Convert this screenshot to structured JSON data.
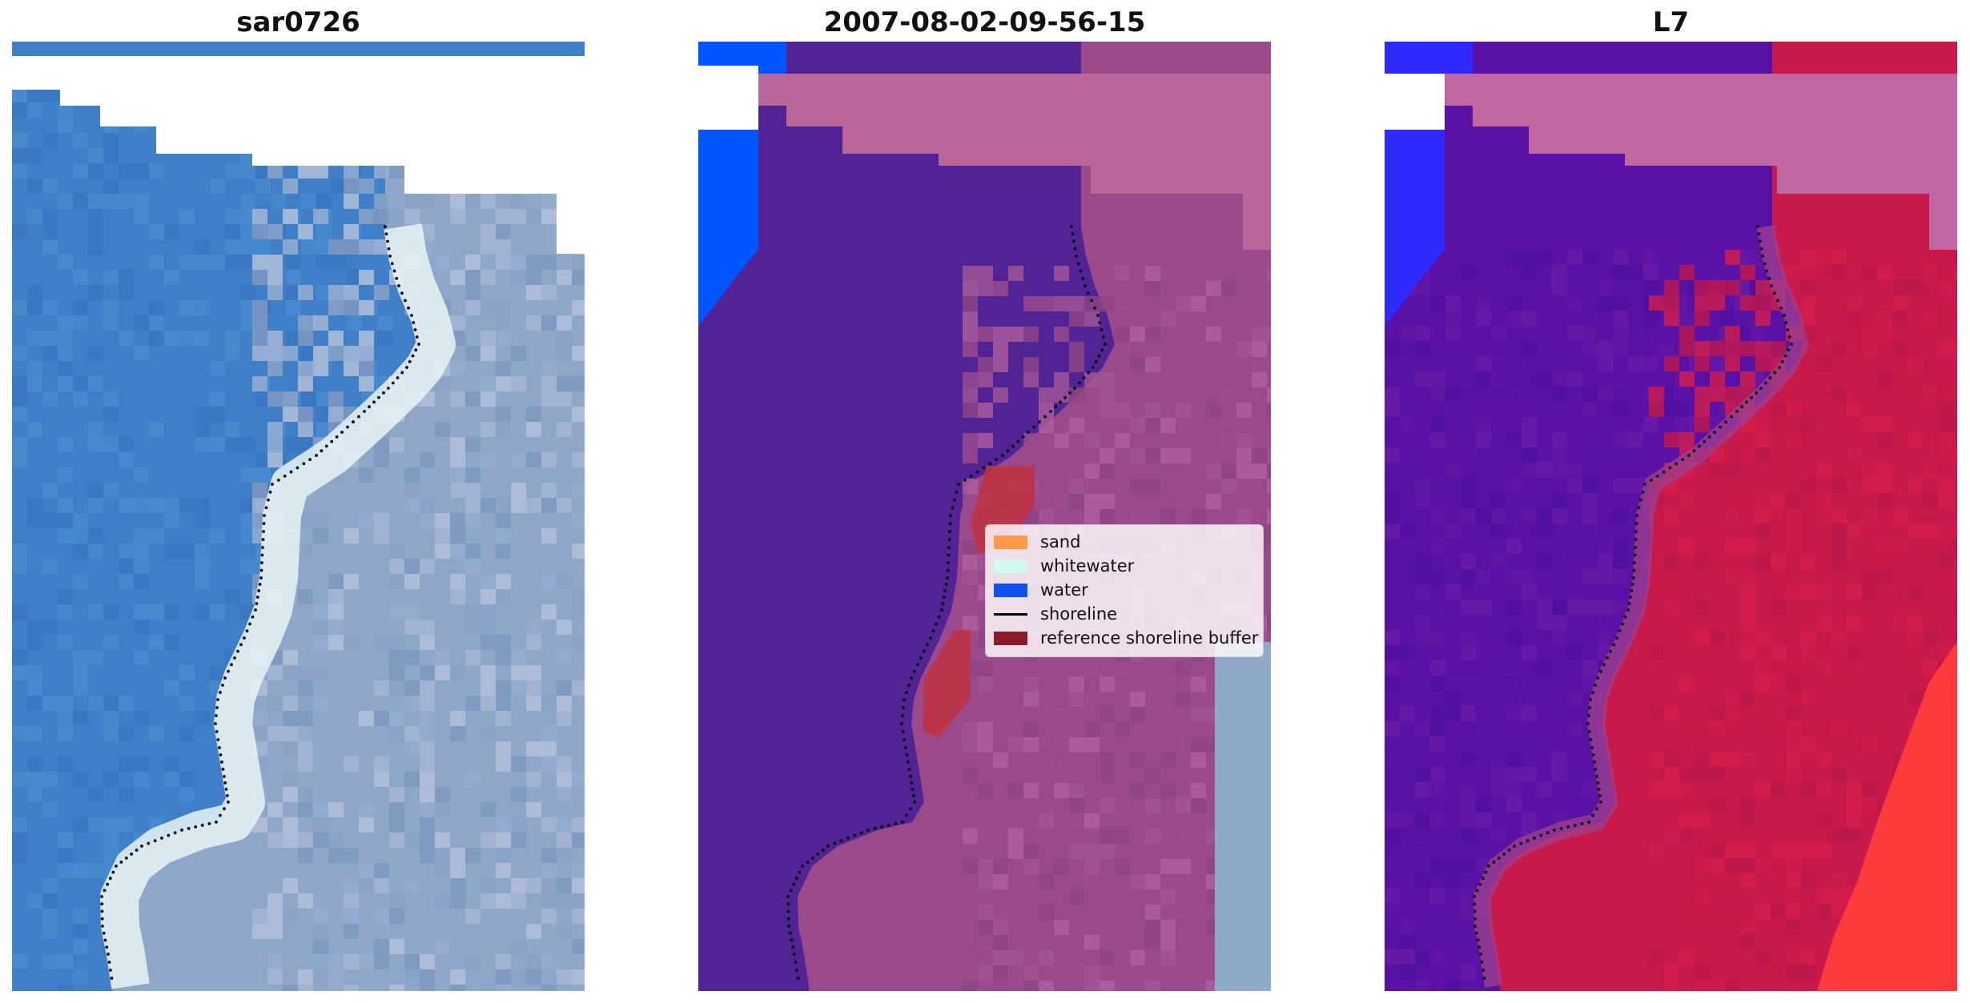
{
  "chart_data": [
    {
      "type": "heatmap",
      "title": "sar0726",
      "panel": "rgb-image",
      "grid": false,
      "axes": "off",
      "colors": {
        "water": "#3f7fc8",
        "surf": "#e9f4f6",
        "land": "#8ea6c8",
        "nodata": "#ffffff"
      },
      "shoreline_style": "dotted black"
    },
    {
      "type": "heatmap",
      "title": "2007-08-02-09-56-15",
      "panel": "classification",
      "grid": false,
      "axes": "off",
      "colors": {
        "class_water": "#0055ff",
        "water_mask": "#522394",
        "land_overlay": "#9a4a8a",
        "cloud_band": "#b9669a",
        "buffer": "#c0303f",
        "nodata": "#ffffff"
      },
      "legend": {
        "placement": "center-right",
        "items": [
          {
            "label": "sand",
            "kind": "patch",
            "color": "#ff9a4a"
          },
          {
            "label": "whitewater",
            "kind": "patch",
            "color": "#d2f8f4"
          },
          {
            "label": "water",
            "kind": "patch",
            "color": "#0c52ee"
          },
          {
            "label": "shoreline",
            "kind": "line",
            "color": "#000000"
          },
          {
            "label": "reference shoreline buffer",
            "kind": "patch",
            "color": "#8b1a2b"
          }
        ]
      },
      "shoreline_style": "dotted black"
    },
    {
      "type": "heatmap",
      "title": "L7",
      "panel": "index-map",
      "grid": false,
      "axes": "off",
      "colors": {
        "low": "#5a12a6",
        "high": "#c81a4a",
        "highest": "#ff3a3a",
        "water": "#2f2aff",
        "cloud_band": "#c066a0",
        "nodata": "#ffffff"
      },
      "shoreline_style": "dotted black"
    }
  ]
}
